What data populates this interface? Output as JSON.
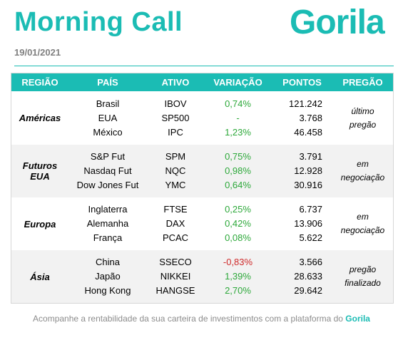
{
  "header": {
    "title": "Morning Call",
    "logo": "Gorila",
    "date": "19/01/2021"
  },
  "table": {
    "columns": [
      "REGIÃO",
      "PAÍS",
      "ATIVO",
      "VARIAÇÃO",
      "PONTOS",
      "PREGÃO"
    ],
    "groups": [
      {
        "region_line1": "Américas",
        "region_line2": "",
        "status_line1": "último",
        "status_line2": "pregão",
        "rows": [
          {
            "country": "Brasil",
            "asset": "IBOV",
            "change": "0,74%",
            "points": "121.242"
          },
          {
            "country": "EUA",
            "asset": "SP500",
            "change": "-",
            "points": "3.768"
          },
          {
            "country": "México",
            "asset": "IPC",
            "change": "1,23%",
            "points": "46.458"
          }
        ]
      },
      {
        "region_line1": "Futuros",
        "region_line2": "EUA",
        "status_line1": "em",
        "status_line2": "negociação",
        "rows": [
          {
            "country": "S&P Fut",
            "asset": "SPM",
            "change": "0,75%",
            "points": "3.791"
          },
          {
            "country": "Nasdaq Fut",
            "asset": "NQC",
            "change": "0,98%",
            "points": "12.928"
          },
          {
            "country": "Dow Jones Fut",
            "asset": "YMC",
            "change": "0,64%",
            "points": "30.916"
          }
        ]
      },
      {
        "region_line1": "Europa",
        "region_line2": "",
        "status_line1": "em",
        "status_line2": "negociação",
        "rows": [
          {
            "country": "Inglaterra",
            "asset": "FTSE",
            "change": "0,25%",
            "points": "6.737"
          },
          {
            "country": "Alemanha",
            "asset": "DAX",
            "change": "0,42%",
            "points": "13.906"
          },
          {
            "country": "França",
            "asset": "PCAC",
            "change": "0,08%",
            "points": "5.622"
          }
        ]
      },
      {
        "region_line1": "Ásia",
        "region_line2": "",
        "status_line1": "pregão",
        "status_line2": "finalizado",
        "rows": [
          {
            "country": "China",
            "asset": "SSECO",
            "change": "-0,83%",
            "points": "3.566"
          },
          {
            "country": "Japão",
            "asset": "NIKKEI",
            "change": "1,39%",
            "points": "28.633"
          },
          {
            "country": "Hong Kong",
            "asset": "HANGSE",
            "change": "2,70%",
            "points": "29.642"
          }
        ]
      }
    ]
  },
  "footer": {
    "text": "Acompanhe a rentabilidade da sua carteira de investimentos com a plataforma do",
    "brand": "Gorila"
  },
  "colors": {
    "accent": "#1bbcb4",
    "positive": "#2da83a",
    "negative": "#cf2a2a"
  }
}
